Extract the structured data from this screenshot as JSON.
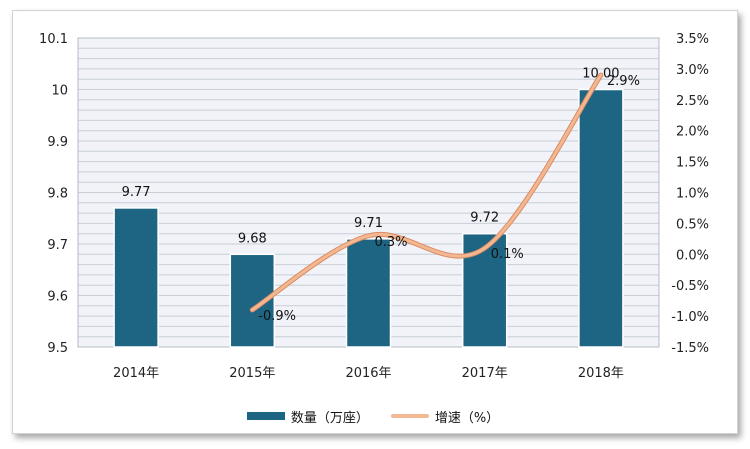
{
  "chart_data": {
    "type": "bar+line",
    "categories": [
      "2014年",
      "2015年",
      "2016年",
      "2017年",
      "2018年"
    ],
    "series": [
      {
        "name": "数量（万座）",
        "type": "bar",
        "axis": "left",
        "values": [
          9.77,
          9.68,
          9.71,
          9.72,
          10.0
        ],
        "labels": [
          "9.77",
          "9.68",
          "9.71",
          "9.72",
          "10.00"
        ]
      },
      {
        "name": "增速（%）",
        "type": "line",
        "axis": "right",
        "values": [
          null,
          -0.9,
          0.3,
          0.1,
          2.9
        ],
        "labels": [
          "",
          "-0.9%",
          "0.3%",
          "0.1%",
          "2.9%"
        ]
      }
    ],
    "y_left": {
      "min": 9.5,
      "max": 10.1,
      "ticks": [
        "9.5",
        "9.6",
        "9.7",
        "9.8",
        "9.9",
        "10",
        "10.1"
      ]
    },
    "y_right": {
      "min": -1.5,
      "max": 3.5,
      "ticks": [
        "-1.5%",
        "-1.0%",
        "-0.5%",
        "0.0%",
        "0.5%",
        "1.0%",
        "1.5%",
        "2.0%",
        "2.5%",
        "3.0%",
        "3.5%"
      ]
    },
    "grid": true,
    "legend_position": "bottom",
    "colors": {
      "bar": "#1e6583",
      "line": "#f3b792",
      "line_edge": "#d98c63",
      "plot_bg": "#f1f3f8",
      "grid": "#c8cfd8"
    }
  },
  "legend": {
    "bar_label": "数量（万座）",
    "line_label": "增速（%）"
  }
}
